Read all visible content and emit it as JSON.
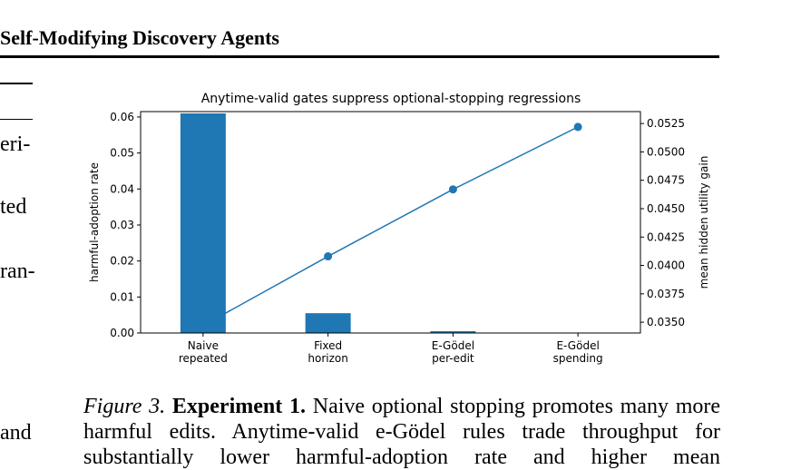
{
  "page": {
    "running_header": "Self-Modifying Discovery Agents",
    "left_fragments": [
      "eri-",
      "ted",
      "ran-",
      "and"
    ]
  },
  "caption": {
    "label": "Figure 3.",
    "bold": "Experiment 1.",
    "line1": "Naive optional stopping promotes many",
    "line2": "more harmful edits. Anytime-valid e-Gödel rules trade throughput",
    "line3": "for substantially lower harmful-adoption rate and higher mean"
  },
  "chart_data": {
    "type": "bar",
    "title": "Anytime-valid gates suppress optional-stopping regressions",
    "categories": [
      "Naive\nrepeated",
      "Fixed\nhorizon",
      "E-Gödel\nper-edit",
      "E-Gödel\nspending"
    ],
    "ylabel": "harmful-adoption rate",
    "ylim": [
      0,
      0.0615
    ],
    "yticks": [
      "0.00",
      "0.01",
      "0.02",
      "0.03",
      "0.04",
      "0.05",
      "0.06"
    ],
    "y2label": "mean hidden utility gain",
    "y2lim": [
      0.03405,
      0.05355
    ],
    "y2ticks": [
      "0.0350",
      "0.0375",
      "0.0400",
      "0.0425",
      "0.0450",
      "0.0475",
      "0.0500",
      "0.0525"
    ],
    "series": [
      {
        "type": "bar",
        "values": [
          0.061,
          0.0055,
          0.0005,
          0.0
        ]
      },
      {
        "type": "line",
        "values": [
          0.0347,
          0.0408,
          0.0467,
          0.0522
        ]
      }
    ],
    "bar_color": "#1f77b4",
    "line_color": "#1f77b4",
    "grid": false
  }
}
